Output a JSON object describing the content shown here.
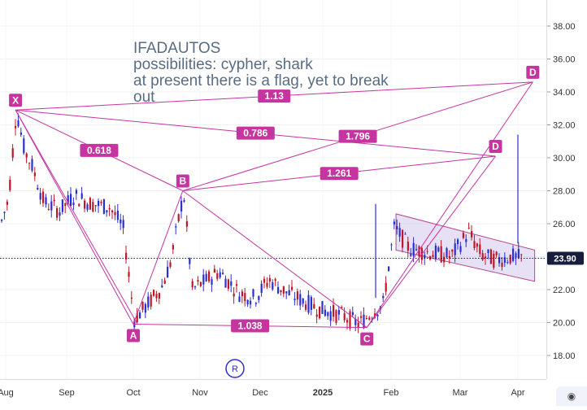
{
  "annotation": {
    "line1": "IFADAUTOS",
    "line2": "possibilities: cypher, shark",
    "line3": "at present there is a flag, yet to break",
    "line4": "out"
  },
  "current_price_label": "23.90",
  "range_marker_label": "R",
  "colors": {
    "up": "#2b2fd1",
    "down": "#c0162a",
    "pattern": "#c535a0",
    "label_bg": "#c535a0",
    "channel_fill": "#c9bde8",
    "channel_stroke": "#b6478d",
    "price_bg": "#171e3d"
  },
  "icons": {
    "corner": "camera-icon"
  },
  "chart_data": {
    "type": "candlestick",
    "y_axis_side": "right",
    "ylim": [
      16.8,
      39.5
    ],
    "y_ticks": [
      "18.00",
      "20.00",
      "22.00",
      "24.00",
      "26.00",
      "28.00",
      "30.00",
      "32.00",
      "34.00",
      "36.00",
      "38.00"
    ],
    "x_ticks": [
      "Aug",
      "Sep",
      "Oct",
      "Nov",
      "Dec",
      "2025",
      "Feb",
      "Mar",
      "Apr"
    ],
    "current_price": 23.9,
    "price_path": [
      [
        "2024-07-25",
        26.3
      ],
      [
        "2024-07-28",
        25.6
      ],
      [
        "2024-08-02",
        27.5
      ],
      [
        "2024-08-06",
        32.9
      ],
      [
        "2024-08-10",
        30.5
      ],
      [
        "2024-08-14",
        29.5
      ],
      [
        "2024-08-20",
        27.3
      ],
      [
        "2024-08-28",
        26.8
      ],
      [
        "2024-09-04",
        27.7
      ],
      [
        "2024-09-12",
        27.2
      ],
      [
        "2024-09-20",
        27.0
      ],
      [
        "2024-09-26",
        25.8
      ],
      [
        "2024-10-01",
        20.2
      ],
      [
        "2024-10-08",
        21.2
      ],
      [
        "2024-10-14",
        22.2
      ],
      [
        "2024-10-18",
        23.7
      ],
      [
        "2024-10-24",
        27.9
      ],
      [
        "2024-10-28",
        22.0
      ],
      [
        "2024-11-03",
        22.5
      ],
      [
        "2024-11-10",
        23.1
      ],
      [
        "2024-11-20",
        21.8
      ],
      [
        "2024-11-28",
        21.5
      ],
      [
        "2024-12-05",
        22.6
      ],
      [
        "2024-12-14",
        21.8
      ],
      [
        "2024-12-22",
        21.3
      ],
      [
        "2024-12-30",
        20.8
      ],
      [
        "2025-01-10",
        20.4
      ],
      [
        "2025-01-17",
        19.9
      ],
      [
        "2025-01-23",
        20.6
      ],
      [
        "2025-01-28",
        21.1
      ],
      [
        "2025-02-02",
        25.8
      ],
      [
        "2025-02-08",
        24.5
      ],
      [
        "2025-02-18",
        24.2
      ],
      [
        "2025-02-25",
        24.0
      ],
      [
        "2025-03-05",
        25.5
      ],
      [
        "2025-03-12",
        24.1
      ],
      [
        "2025-03-20",
        23.8
      ],
      [
        "2025-03-28",
        24.0
      ],
      [
        "2025-04-03",
        23.9
      ]
    ],
    "pattern_points": [
      {
        "label": "X",
        "date": "2024-08-06",
        "price": 32.9
      },
      {
        "label": "A",
        "date": "2024-10-01",
        "price": 19.9
      },
      {
        "label": "B",
        "date": "2024-10-24",
        "price": 28.0
      },
      {
        "label": "C",
        "date": "2025-01-21",
        "price": 19.7
      },
      {
        "label": "D",
        "date": "2025-03-20",
        "price": 30.1
      },
      {
        "label": "D",
        "date": "2025-04-09",
        "price": 34.6
      }
    ],
    "ratios": [
      {
        "value": "0.618",
        "between": "XA-AB"
      },
      {
        "value": "0.786",
        "between": "X-D"
      },
      {
        "value": "1.13",
        "between": "X-D"
      },
      {
        "value": "1.796",
        "between": "B-D"
      },
      {
        "value": "1.261",
        "between": "B-D"
      },
      {
        "value": "1.038",
        "between": "A-C"
      }
    ],
    "flag_channel": {
      "start_date": "2025-02-03",
      "end_date": "2025-04-10",
      "upper": [
        26.6,
        24.4
      ],
      "lower": [
        24.4,
        22.5
      ]
    },
    "spikes": [
      {
        "date": "2025-01-25",
        "low": 21.5,
        "high": 27.2
      },
      {
        "date": "2025-04-01",
        "low": 24.8,
        "high": 31.4
      }
    ]
  }
}
